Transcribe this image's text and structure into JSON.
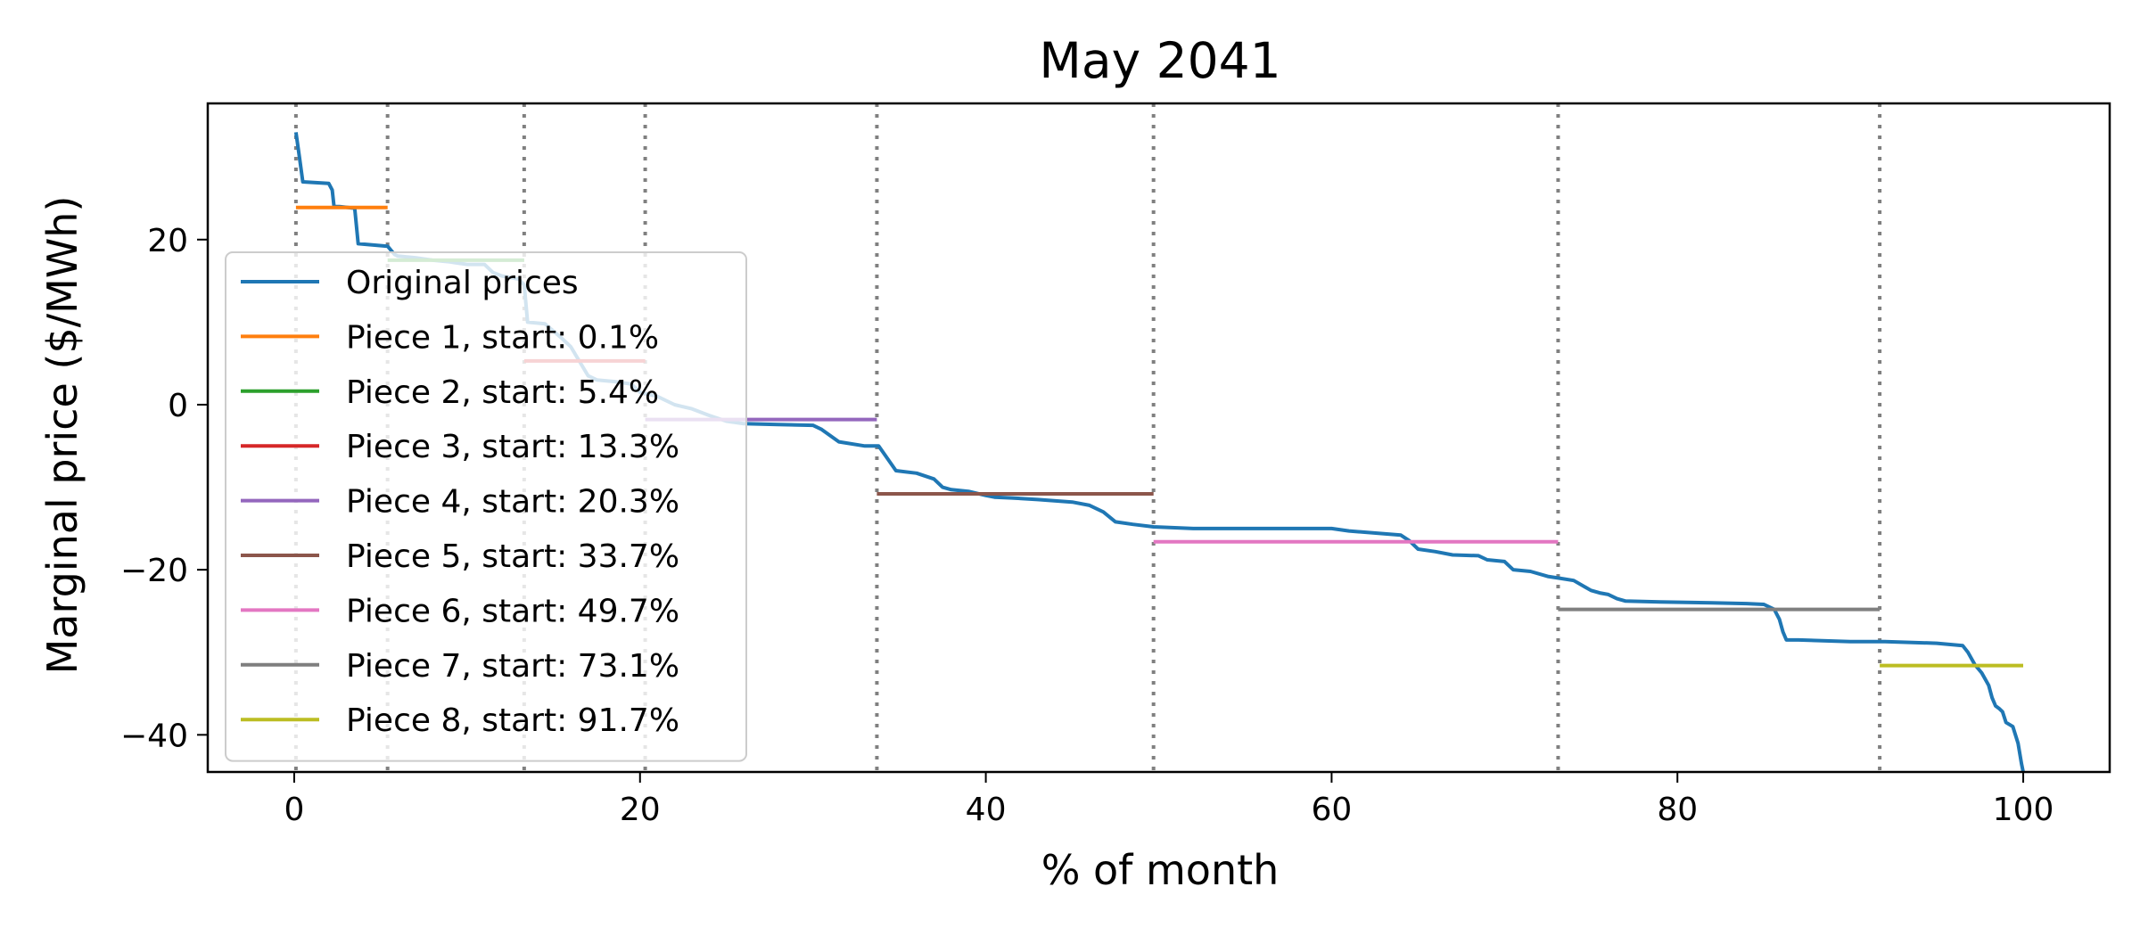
{
  "chart_data": {
    "type": "line",
    "title": "May 2041",
    "xlabel": "% of month",
    "ylabel": "Marginal price ($/MWh)",
    "xlim": [
      -5,
      105
    ],
    "ylim": [
      -44.5,
      36.5
    ],
    "xticks": [
      0,
      20,
      40,
      60,
      80,
      100
    ],
    "xtick_labels": [
      "0",
      "20",
      "40",
      "60",
      "80",
      "100"
    ],
    "yticks": [
      20,
      0,
      -20,
      -40
    ],
    "ytick_labels": [
      "20",
      "0",
      "−20",
      "−40"
    ],
    "grid": false,
    "legend_position": "lower-left",
    "breakpoints": [
      0.1,
      5.4,
      13.3,
      20.3,
      33.7,
      49.7,
      73.1,
      91.7
    ],
    "series": [
      {
        "name": "Original prices",
        "color": "#1f77b4",
        "x": [
          0.1,
          0.3,
          0.5,
          2.0,
          2.2,
          2.3,
          2.6,
          3.5,
          3.7,
          5.4,
          5.8,
          6.0,
          7.0,
          8.0,
          9.0,
          10.0,
          11.0,
          11.5,
          12.0,
          13.0,
          13.3,
          13.5,
          14.5,
          15.5,
          16.0,
          17.0,
          17.5,
          18.5,
          19.5,
          20.0,
          21.0,
          22.0,
          23.0,
          24.0,
          25.0,
          26.0,
          28.0,
          30.0,
          30.5,
          31.5,
          33.0,
          33.8,
          34.3,
          34.8,
          36.0,
          37.0,
          37.5,
          38.0,
          39.0,
          40.0,
          40.5,
          41.5,
          43.0,
          45.0,
          46.0,
          46.8,
          47.5,
          48.5,
          49.7,
          52.0,
          55.0,
          60.0,
          61.0,
          64.0,
          64.5,
          65.0,
          66.0,
          67.0,
          68.5,
          69.0,
          70.0,
          70.5,
          71.5,
          72.5,
          73.1,
          74.0,
          75.0,
          75.5,
          76.0,
          76.5,
          77.0,
          79.0,
          82.0,
          84.0,
          85.0,
          85.6,
          85.9,
          86.1,
          86.3,
          87.0,
          90.0,
          92.0,
          95.0,
          96.5,
          96.8,
          97.2,
          97.6,
          98.0,
          98.2,
          98.4,
          98.6,
          98.8,
          99.0,
          99.4,
          99.7,
          99.9,
          100.0
        ],
        "y": [
          33.0,
          30.0,
          27.0,
          26.8,
          26.0,
          24.0,
          24.0,
          23.8,
          19.5,
          19.2,
          18.2,
          18.0,
          17.8,
          17.5,
          17.3,
          17.0,
          17.0,
          16.0,
          15.6,
          15.2,
          14.5,
          10.0,
          9.8,
          8.0,
          7.0,
          3.5,
          3.0,
          2.8,
          2.5,
          1.5,
          1.0,
          0.0,
          -0.5,
          -1.3,
          -2.0,
          -2.3,
          -2.4,
          -2.5,
          -3.0,
          -4.5,
          -5.0,
          -5.0,
          -6.5,
          -8.0,
          -8.3,
          -9.0,
          -10.0,
          -10.3,
          -10.5,
          -11.0,
          -11.2,
          -11.3,
          -11.5,
          -11.8,
          -12.2,
          -13.0,
          -14.2,
          -14.5,
          -14.8,
          -15.0,
          -15.0,
          -15.0,
          -15.3,
          -15.8,
          -16.5,
          -17.5,
          -17.8,
          -18.2,
          -18.3,
          -18.8,
          -19.0,
          -20.0,
          -20.2,
          -20.8,
          -21.0,
          -21.3,
          -22.5,
          -22.8,
          -23.0,
          -23.5,
          -23.8,
          -23.9,
          -24.0,
          -24.1,
          -24.2,
          -24.8,
          -26.0,
          -27.5,
          -28.5,
          -28.5,
          -28.7,
          -28.7,
          -28.9,
          -29.2,
          -30.0,
          -31.5,
          -32.5,
          -34.0,
          -35.5,
          -36.5,
          -36.8,
          -37.2,
          -38.5,
          -39.0,
          -41.0,
          -43.5,
          -44.5
        ]
      },
      {
        "name": "Piece 1, start: 0.1%",
        "color": "#ff7f0e",
        "x": [
          0.1,
          5.4
        ],
        "y": [
          23.9,
          23.9
        ]
      },
      {
        "name": "Piece 2, start: 5.4%",
        "color": "#2ca02c",
        "x": [
          5.4,
          13.3
        ],
        "y": [
          17.5,
          17.5
        ]
      },
      {
        "name": "Piece 3, start: 13.3%",
        "color": "#d62728",
        "x": [
          13.3,
          20.3
        ],
        "y": [
          5.3,
          5.3
        ]
      },
      {
        "name": "Piece 4, start: 20.3%",
        "color": "#9467bd",
        "x": [
          20.3,
          33.7
        ],
        "y": [
          -1.8,
          -1.8
        ]
      },
      {
        "name": "Piece 5, start: 33.7%",
        "color": "#8c564b",
        "x": [
          33.7,
          49.7
        ],
        "y": [
          -10.8,
          -10.8
        ]
      },
      {
        "name": "Piece 6, start: 49.7%",
        "color": "#e377c2",
        "x": [
          49.7,
          73.1
        ],
        "y": [
          -16.6,
          -16.6
        ]
      },
      {
        "name": "Piece 7, start: 73.1%",
        "color": "#7f7f7f",
        "x": [
          73.1,
          91.7
        ],
        "y": [
          -24.8,
          -24.8
        ]
      },
      {
        "name": "Piece 8, start: 91.7%",
        "color": "#bcbd22",
        "x": [
          91.7,
          100.0
        ],
        "y": [
          -31.6,
          -31.6
        ]
      }
    ]
  }
}
